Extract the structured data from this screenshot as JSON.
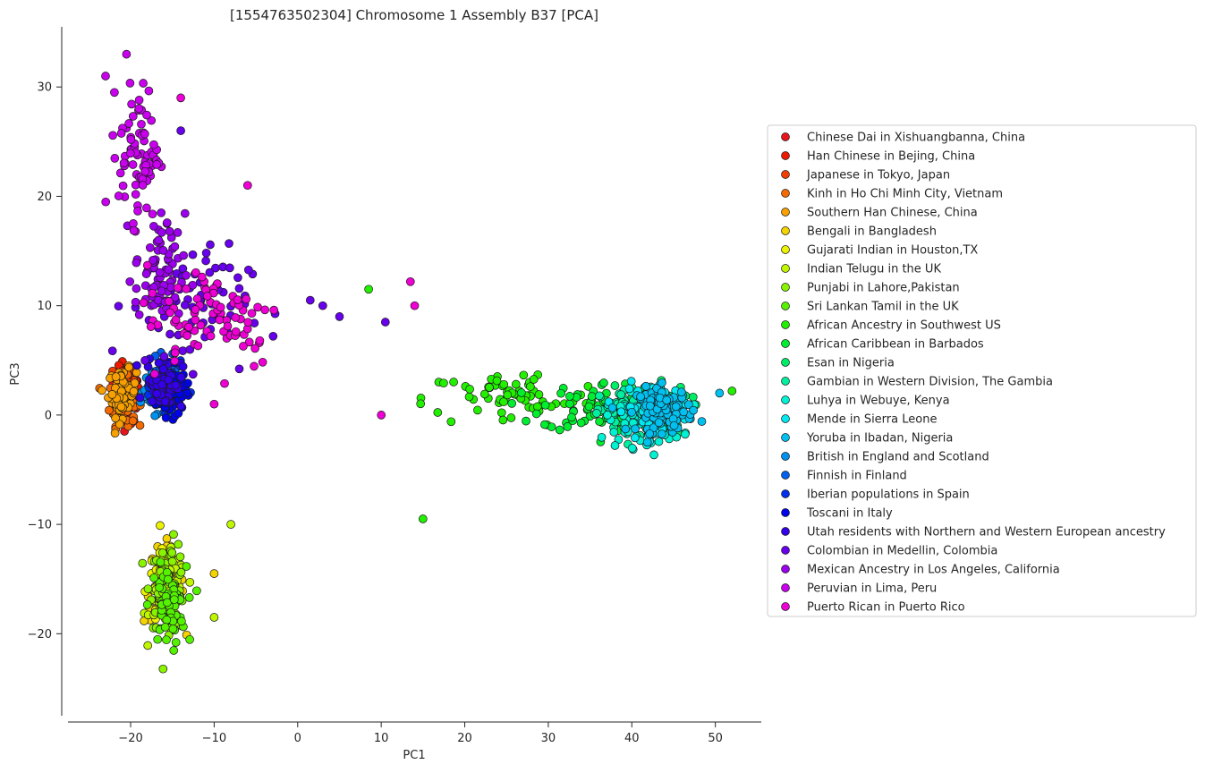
{
  "chart_data": {
    "type": "scatter",
    "title": "[1554763502304] Chromosome 1 Assembly B37 [PCA]",
    "xlabel": "PC1",
    "ylabel": "PC3",
    "xlim": [
      -27.5,
      55.5
    ],
    "ylim": [
      -27.5,
      35.5
    ],
    "xticks": [
      -20,
      -10,
      0,
      10,
      20,
      30,
      40,
      50
    ],
    "yticks": [
      -20,
      -10,
      0,
      10,
      20,
      30
    ],
    "xtick_labels": [
      "−20",
      "−10",
      "0",
      "10",
      "20",
      "30",
      "40",
      "50"
    ],
    "ytick_labels": [
      "−20",
      "−10",
      "0",
      "10",
      "20",
      "30"
    ],
    "grid": false,
    "legend_position": "right",
    "series": [
      {
        "name": "Chinese Dai in Xishuangbanna, China",
        "color": "#e8141c",
        "center": [
          -20.5,
          1.5
        ],
        "spread": [
          1.3,
          1.9
        ],
        "n": 60
      },
      {
        "name": "Han Chinese in Bejing, China",
        "color": "#ee1a00",
        "center": [
          -20.5,
          2.2
        ],
        "spread": [
          1.3,
          1.8
        ],
        "n": 60
      },
      {
        "name": "Japanese in Tokyo, Japan",
        "color": "#f23e00",
        "center": [
          -20.5,
          3.0
        ],
        "spread": [
          1.2,
          1.6
        ],
        "n": 50
      },
      {
        "name": "Kinh in Ho Chi Minh City, Vietnam",
        "color": "#f56a00",
        "center": [
          -21.0,
          1.2
        ],
        "spread": [
          1.3,
          1.8
        ],
        "n": 55
      },
      {
        "name": "Southern Han Chinese, China",
        "color": "#f7a000",
        "center": [
          -21.0,
          2.0
        ],
        "spread": [
          1.4,
          1.8
        ],
        "n": 70
      },
      {
        "name": "Bengali in Bangladesh",
        "color": "#f5d300",
        "center": [
          -16.0,
          -15.5
        ],
        "spread": [
          2.0,
          3.0
        ],
        "n": 50
      },
      {
        "name": "Gujarati Indian in Houston,TX",
        "color": "#ecf200",
        "center": [
          -16.0,
          -16.0
        ],
        "spread": [
          1.8,
          3.0
        ],
        "n": 60
      },
      {
        "name": "Indian Telugu in the UK",
        "color": "#bff600",
        "center": [
          -15.5,
          -16.5
        ],
        "spread": [
          1.8,
          3.0
        ],
        "n": 60
      },
      {
        "name": "Punjabi in Lahore,Pakistan",
        "color": "#8af300",
        "center": [
          -15.5,
          -15.5
        ],
        "spread": [
          1.8,
          3.2
        ],
        "n": 60
      },
      {
        "name": "Sri Lankan Tamil in the UK",
        "color": "#55f200",
        "center": [
          -15.5,
          -17.5
        ],
        "spread": [
          1.8,
          3.0
        ],
        "n": 55
      },
      {
        "name": "African Ancestry in Southwest US",
        "color": "#22f000",
        "center": [
          26.0,
          1.5
        ],
        "spread": [
          9.0,
          2.2
        ],
        "n": 70
      },
      {
        "name": "African Caribbean in Barbados",
        "color": "#00ee30",
        "center": [
          37.0,
          0.8
        ],
        "spread": [
          6.5,
          1.9
        ],
        "n": 80
      },
      {
        "name": "Esan in Nigeria",
        "color": "#00ee66",
        "center": [
          42.0,
          0.5
        ],
        "spread": [
          4.0,
          1.9
        ],
        "n": 80
      },
      {
        "name": "Gambian in Western Division, The Gambia",
        "color": "#00f0a0",
        "center": [
          40.5,
          0.0
        ],
        "spread": [
          3.5,
          2.0
        ],
        "n": 90
      },
      {
        "name": "Luhya in Webuye, Kenya",
        "color": "#00f2d2",
        "center": [
          41.5,
          -0.5
        ],
        "spread": [
          3.8,
          2.0
        ],
        "n": 80
      },
      {
        "name": "Mende in Sierra Leone",
        "color": "#00e8f0",
        "center": [
          43.0,
          0.8
        ],
        "spread": [
          3.2,
          1.7
        ],
        "n": 80
      },
      {
        "name": "Yoruba in Ibadan, Nigeria",
        "color": "#00c0f0",
        "center": [
          44.0,
          0.5
        ],
        "spread": [
          2.8,
          1.7
        ],
        "n": 90
      },
      {
        "name": "British in England and Scotland",
        "color": "#0090ee",
        "center": [
          -17.0,
          2.5
        ],
        "spread": [
          1.5,
          1.8
        ],
        "n": 60
      },
      {
        "name": "Finnish in Finland",
        "color": "#0060ee",
        "center": [
          -16.0,
          2.8
        ],
        "spread": [
          1.5,
          1.8
        ],
        "n": 60
      },
      {
        "name": "Iberian populations in Spain",
        "color": "#0030ee",
        "center": [
          -15.5,
          2.5
        ],
        "spread": [
          1.5,
          1.8
        ],
        "n": 60
      },
      {
        "name": "Toscani in Italy",
        "color": "#0004e8",
        "center": [
          -15.0,
          2.0
        ],
        "spread": [
          1.4,
          1.8
        ],
        "n": 70
      },
      {
        "name": "Utah residents with Northern and Western European ancestry",
        "color": "#3400ea",
        "center": [
          -16.0,
          3.0
        ],
        "spread": [
          1.8,
          2.0
        ],
        "n": 70
      },
      {
        "name": "Colombian in Medellin, Colombia",
        "color": "#6800ec",
        "center": [
          -13.0,
          10.0
        ],
        "spread": [
          6.0,
          4.5
        ],
        "n": 70
      },
      {
        "name": "Mexican Ancestry in Los Angeles, California",
        "color": "#9b00ee",
        "center": [
          -16.5,
          13.0
        ],
        "spread": [
          2.5,
          4.5
        ],
        "n": 70
      },
      {
        "name": "Peruvian in Lima, Peru",
        "color": "#c800ee",
        "center": [
          -19.0,
          24.0
        ],
        "spread": [
          2.0,
          5.0
        ],
        "n": 80
      },
      {
        "name": "Puerto Rican in Puerto Rico",
        "color": "#ee00d4",
        "center": [
          -10.0,
          9.0
        ],
        "spread": [
          7.0,
          4.0
        ],
        "n": 80
      }
    ],
    "outliers": [
      {
        "x": 13.5,
        "y": 12.2,
        "color": "#ee00d4"
      },
      {
        "x": 14.0,
        "y": 10.0,
        "color": "#ee00d4"
      },
      {
        "x": 8.5,
        "y": 11.5,
        "color": "#22f000"
      },
      {
        "x": 10.5,
        "y": 8.5,
        "color": "#6800ec"
      },
      {
        "x": 15.0,
        "y": -9.5,
        "color": "#22f000"
      },
      {
        "x": -14.0,
        "y": 26.0,
        "color": "#6800ec"
      },
      {
        "x": -6.0,
        "y": 21.0,
        "color": "#ee00d4"
      },
      {
        "x": -8.0,
        "y": -10.0,
        "color": "#bff600"
      },
      {
        "x": -10.0,
        "y": -18.5,
        "color": "#bff600"
      },
      {
        "x": -10.0,
        "y": -14.5,
        "color": "#f5d300"
      },
      {
        "x": 52.0,
        "y": 2.2,
        "color": "#22f000"
      },
      {
        "x": 50.5,
        "y": 2.0,
        "color": "#00c0f0"
      },
      {
        "x": 10.0,
        "y": 0.0,
        "color": "#ee00d4"
      },
      {
        "x": -10.0,
        "y": 1.0,
        "color": "#ee00d4"
      },
      {
        "x": -23.0,
        "y": 31.0,
        "color": "#c800ee"
      },
      {
        "x": -20.5,
        "y": 33.0,
        "color": "#c800ee"
      },
      {
        "x": -14.0,
        "y": 29.0,
        "color": "#ee00d4"
      },
      {
        "x": 5.0,
        "y": 9.0,
        "color": "#6800ec"
      },
      {
        "x": 3.0,
        "y": 10.0,
        "color": "#6800ec"
      },
      {
        "x": 1.5,
        "y": 10.5,
        "color": "#6800ec"
      }
    ]
  }
}
